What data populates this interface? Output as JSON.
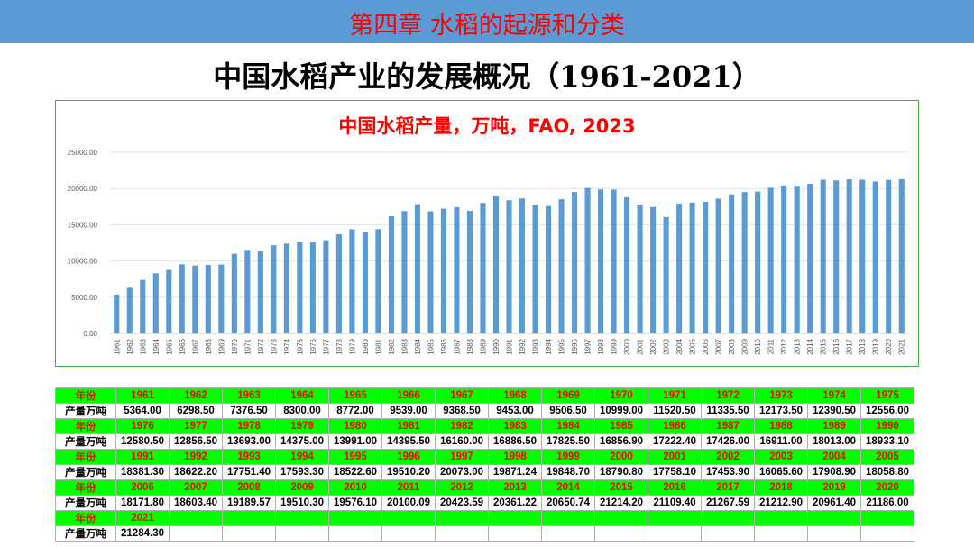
{
  "header": {
    "chapter_title": "第四章  水稻的起源和分类"
  },
  "slide_title": "中国水稻产业的发展概况（1961-2021）",
  "colors": {
    "banner": "#5b9bd5",
    "bar": "#5b9bd5",
    "title_red": "#ff0000",
    "table_year_bg": "#00ff00",
    "frame": "#3cb043"
  },
  "chart_data": {
    "type": "bar",
    "title": "中国水稻产量，万吨，FAO, 2023",
    "ylim": [
      0,
      25000
    ],
    "yticks": [
      "0.00",
      "5000.00",
      "10000.00",
      "15000.00",
      "20000.00",
      "25000.00"
    ],
    "grid": true,
    "categories": [
      "1961",
      "1962",
      "1963",
      "1964",
      "1965",
      "1966",
      "1967",
      "1968",
      "1969",
      "1970",
      "1971",
      "1972",
      "1973",
      "1974",
      "1975",
      "1976",
      "1977",
      "1978",
      "1979",
      "1980",
      "1981",
      "1982",
      "1983",
      "1984",
      "1985",
      "1986",
      "1987",
      "1988",
      "1989",
      "1990",
      "1991",
      "1992",
      "1993",
      "1994",
      "1995",
      "1996",
      "1997",
      "1998",
      "1999",
      "2000",
      "2001",
      "2002",
      "2003",
      "2004",
      "2005",
      "2006",
      "2007",
      "2008",
      "2009",
      "2010",
      "2011",
      "2012",
      "2013",
      "2014",
      "2015",
      "2016",
      "2017",
      "2018",
      "2019",
      "2020",
      "2021"
    ],
    "values": [
      5364.0,
      6298.5,
      7376.5,
      8300.0,
      8772.0,
      9539.0,
      9368.5,
      9453.0,
      9506.5,
      10999.0,
      11520.5,
      11335.5,
      12173.5,
      12390.5,
      12556.0,
      12580.5,
      12856.5,
      13693.0,
      14375.0,
      13991.0,
      14395.5,
      16160.0,
      16886.5,
      17825.5,
      16856.9,
      17222.4,
      17426.0,
      16911.0,
      18013.0,
      18933.1,
      18381.3,
      18622.2,
      17751.4,
      17593.3,
      18522.6,
      19510.2,
      20073.0,
      19871.24,
      19848.7,
      18790.8,
      17758.1,
      17453.9,
      16065.6,
      17908.9,
      18058.8,
      18171.8,
      18603.4,
      19189.57,
      19510.3,
      19576.1,
      20100.09,
      20423.59,
      20361.22,
      20650.74,
      21214.2,
      21109.4,
      21267.59,
      21212.9,
      20961.4,
      21186.0,
      21284.3
    ]
  },
  "table": {
    "year_label": "年份",
    "value_label": "产量万吨",
    "rows": [
      {
        "years": [
          "1961",
          "1962",
          "1963",
          "1964",
          "1965",
          "1966",
          "1967",
          "1968",
          "1969",
          "1970",
          "1971",
          "1972",
          "1973",
          "1974",
          "1975"
        ],
        "values": [
          "5364.00",
          "6298.50",
          "7376.50",
          "8300.00",
          "8772.00",
          "9539.00",
          "9368.50",
          "9453.00",
          "9506.50",
          "10999.00",
          "11520.50",
          "11335.50",
          "12173.50",
          "12390.50",
          "12556.00"
        ]
      },
      {
        "years": [
          "1976",
          "1977",
          "1978",
          "1979",
          "1980",
          "1981",
          "1982",
          "1983",
          "1984",
          "1985",
          "1986",
          "1987",
          "1988",
          "1989",
          "1990"
        ],
        "values": [
          "12580.50",
          "12856.50",
          "13693.00",
          "14375.00",
          "13991.00",
          "14395.50",
          "16160.00",
          "16886.50",
          "17825.50",
          "16856.90",
          "17222.40",
          "17426.00",
          "16911.00",
          "18013.00",
          "18933.10"
        ]
      },
      {
        "years": [
          "1991",
          "1992",
          "1993",
          "1994",
          "1995",
          "1996",
          "1997",
          "1998",
          "1999",
          "2000",
          "2001",
          "2002",
          "2003",
          "2004",
          "2005"
        ],
        "values": [
          "18381.30",
          "18622.20",
          "17751.40",
          "17593.30",
          "18522.60",
          "19510.20",
          "20073.00",
          "19871.24",
          "19848.70",
          "18790.80",
          "17758.10",
          "17453.90",
          "16065.60",
          "17908.90",
          "18058.80"
        ]
      },
      {
        "years": [
          "2006",
          "2007",
          "2008",
          "2009",
          "2010",
          "2011",
          "2012",
          "2013",
          "2014",
          "2015",
          "2016",
          "2017",
          "2018",
          "2019",
          "2020"
        ],
        "values": [
          "18171.80",
          "18603.40",
          "19189.57",
          "19510.30",
          "19576.10",
          "20100.09",
          "20423.59",
          "20361.22",
          "20650.74",
          "21214.20",
          "21109.40",
          "21267.59",
          "21212.90",
          "20961.40",
          "21186.00"
        ]
      },
      {
        "years": [
          "2021"
        ],
        "values": [
          "21284.30"
        ]
      }
    ]
  }
}
